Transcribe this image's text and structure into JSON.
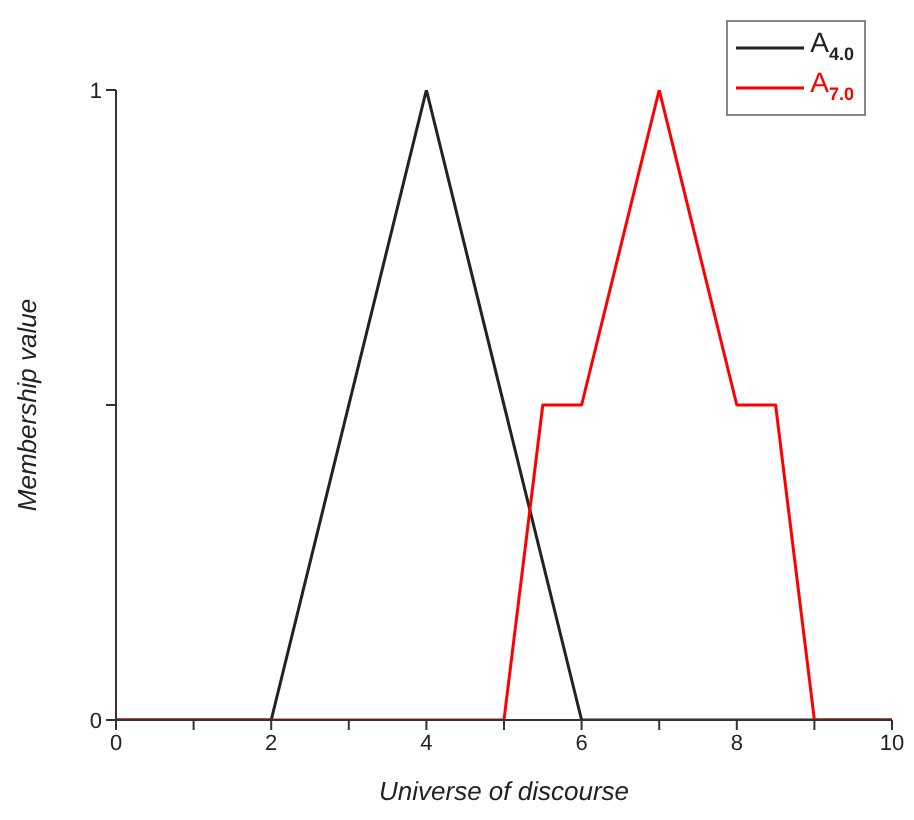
{
  "chart_data": {
    "type": "line",
    "xlabel": "Universe of discourse",
    "ylabel": "Membership value",
    "xlim": [
      0,
      10
    ],
    "xticks": [
      0,
      {
        "value": 1,
        "label": null
      },
      2,
      {
        "value": 3,
        "label": null
      },
      4,
      {
        "value": 5,
        "label": null
      },
      6,
      {
        "value": 7,
        "label": null
      },
      8,
      {
        "value": 9,
        "label": null
      },
      10
    ],
    "ylim": [
      0,
      1
    ],
    "yticks": [
      0,
      {
        "value": 0.5,
        "label": null
      },
      1
    ],
    "series": [
      {
        "name": "A$_{4.0}$",
        "color": "#222222",
        "x": [
          0,
          2,
          4,
          6,
          10
        ],
        "values": [
          0,
          0,
          1,
          0,
          0
        ]
      },
      {
        "name": "A$_{7.0}$",
        "color": "#ff0000",
        "x": [
          0,
          5,
          5.5,
          6,
          7,
          8,
          8.5,
          9,
          10
        ],
        "values": [
          0,
          0,
          0.5,
          0.5,
          1,
          0.5,
          0.5,
          0,
          0
        ]
      }
    ],
    "legend": "top right",
    "marker": "none"
  }
}
